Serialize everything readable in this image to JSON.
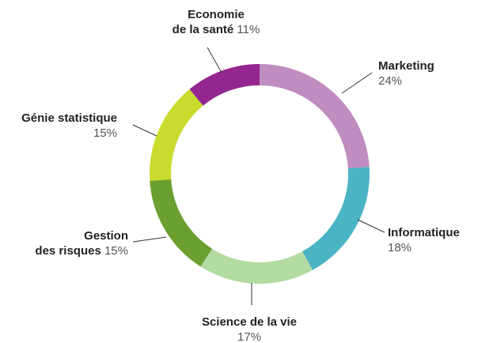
{
  "chart_data": {
    "type": "pie",
    "donut": true,
    "categories": [
      "Marketing",
      "Informatique",
      "Science de la vie",
      "Gestion\ndes risques",
      "Génie statistique",
      "Economie\nde la santé"
    ],
    "values": [
      24,
      18,
      17,
      15,
      15,
      11
    ],
    "value_labels": [
      "24%",
      "18%",
      "17%",
      "15%",
      "15%",
      "11%"
    ],
    "colors": [
      "#c08dc0",
      "#4ab4c4",
      "#b4dba2",
      "#6b9f2f",
      "#c9dc2d",
      "#93278f"
    ]
  }
}
